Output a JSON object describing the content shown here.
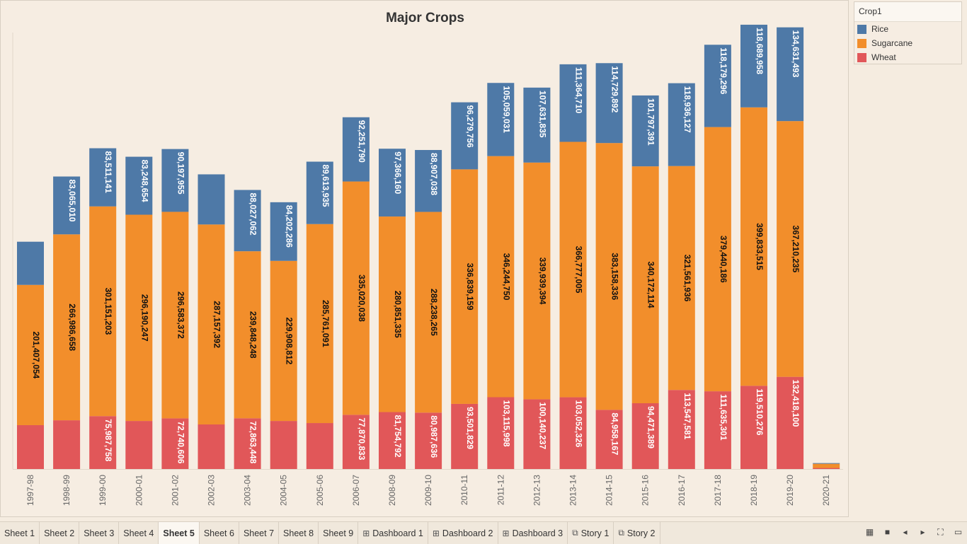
{
  "tabs": [
    {
      "label": "Sheet 1",
      "icon": "",
      "active": false
    },
    {
      "label": "Sheet 2",
      "icon": "",
      "active": false
    },
    {
      "label": "Sheet 3",
      "icon": "",
      "active": false
    },
    {
      "label": "Sheet 4",
      "icon": "",
      "active": false
    },
    {
      "label": "Sheet 5",
      "icon": "",
      "active": true
    },
    {
      "label": "Sheet 6",
      "icon": "",
      "active": false
    },
    {
      "label": "Sheet 7",
      "icon": "",
      "active": false
    },
    {
      "label": "Sheet 8",
      "icon": "",
      "active": false
    },
    {
      "label": "Sheet 9",
      "icon": "",
      "active": false
    },
    {
      "label": "Dashboard 1",
      "icon": "dashboard-icon",
      "active": false
    },
    {
      "label": "Dashboard 2",
      "icon": "dashboard-icon",
      "active": false
    },
    {
      "label": "Dashboard 3",
      "icon": "dashboard-icon",
      "active": false
    },
    {
      "label": "Story 1",
      "icon": "story-icon",
      "active": false
    },
    {
      "label": "Story 2",
      "icon": "story-icon",
      "active": false
    }
  ],
  "legend": {
    "title": "Crop1",
    "items": [
      {
        "label": "Rice",
        "color": "#4e79a7"
      },
      {
        "label": "Sugarcane",
        "color": "#f28e2b"
      },
      {
        "label": "Wheat",
        "color": "#e15759"
      }
    ]
  },
  "chart_data": {
    "type": "bar",
    "stacked": true,
    "title": "Major Crops",
    "xlabel": "",
    "ylabel": "",
    "ylim": [
      0,
      640000000
    ],
    "categories": [
      "1997-98",
      "1998-99",
      "1999-00",
      "2000-01",
      "2001-02",
      "2002-03",
      "2003-04",
      "2004-05",
      "2005-06",
      "2006-07",
      "2008-09",
      "2009-10",
      "2010-11",
      "2011-12",
      "2012-13",
      "2013-14",
      "2014-15",
      "2015-16",
      "2016-17",
      "2017-18",
      "2018-19",
      "2019-20",
      "2020-21"
    ],
    "series": [
      {
        "name": "Wheat",
        "color": "#e15759",
        "values": [
          63000000,
          70000000,
          75987758,
          69000000,
          72740606,
          64000000,
          72863448,
          69000000,
          66000000,
          77870833,
          81754792,
          80987636,
          93501829,
          103115998,
          100140237,
          103052326,
          84958167,
          94471389,
          113547581,
          111635301,
          119510276,
          132418100,
          1500000
        ],
        "labels": [
          "",
          "",
          "75,987,758",
          "",
          "72,740,606",
          "",
          "72,863,448",
          "",
          "",
          "77,870,833",
          "81,754,792",
          "80,987,636",
          "93,501,829",
          "103,115,998",
          "100,140,237",
          "103,052,326",
          "84,958,167",
          "94,471,389",
          "113,547,581",
          "111,635,301",
          "119,510,276",
          "132,418,100",
          ""
        ]
      },
      {
        "name": "Sugarcane",
        "color": "#f28e2b",
        "values": [
          201407054,
          266986658,
          301151203,
          296190247,
          296583372,
          287157392,
          239848248,
          229908812,
          285761091,
          335020038,
          280851335,
          288238265,
          336839159,
          346244750,
          339939394,
          366777005,
          383158336,
          340172114,
          321561936,
          379440186,
          399833515,
          367210235,
          6000000
        ],
        "labels": [
          "201,407,054",
          "266,986,658",
          "301,151,203",
          "296,190,247",
          "296,583,372",
          "287,157,392",
          "239,848,248",
          "229,908,812",
          "285,761,091",
          "335,020,038",
          "280,851,335",
          "288,238,265",
          "336,839,159",
          "346,244,750",
          "339,939,394",
          "366,777,005",
          "383,158,336",
          "340,172,114",
          "321,561,936",
          "379,440,186",
          "399,833,515",
          "367,210,235",
          ""
        ]
      },
      {
        "name": "Rice",
        "color": "#4e79a7",
        "values": [
          62000000,
          83065010,
          83511141,
          83248654,
          90197955,
          72000000,
          88027062,
          84202286,
          89613935,
          92251790,
          97366160,
          88907038,
          96279756,
          105059031,
          107631835,
          111364710,
          114729892,
          101797391,
          118936127,
          118179296,
          118689958,
          134631493,
          1000000
        ],
        "labels": [
          "",
          "83,065,010",
          "83,511,141",
          "83,248,654",
          "90,197,955",
          "",
          "88,027,062",
          "84,202,286",
          "89,613,935",
          "92,251,790",
          "97,366,160",
          "88,907,038",
          "96,279,756",
          "105,059,031",
          "107,631,835",
          "111,364,710",
          "114,729,892",
          "101,797,391",
          "118,936,127",
          "118,179,296",
          "118,689,958",
          "134,631,493",
          ""
        ]
      }
    ]
  }
}
